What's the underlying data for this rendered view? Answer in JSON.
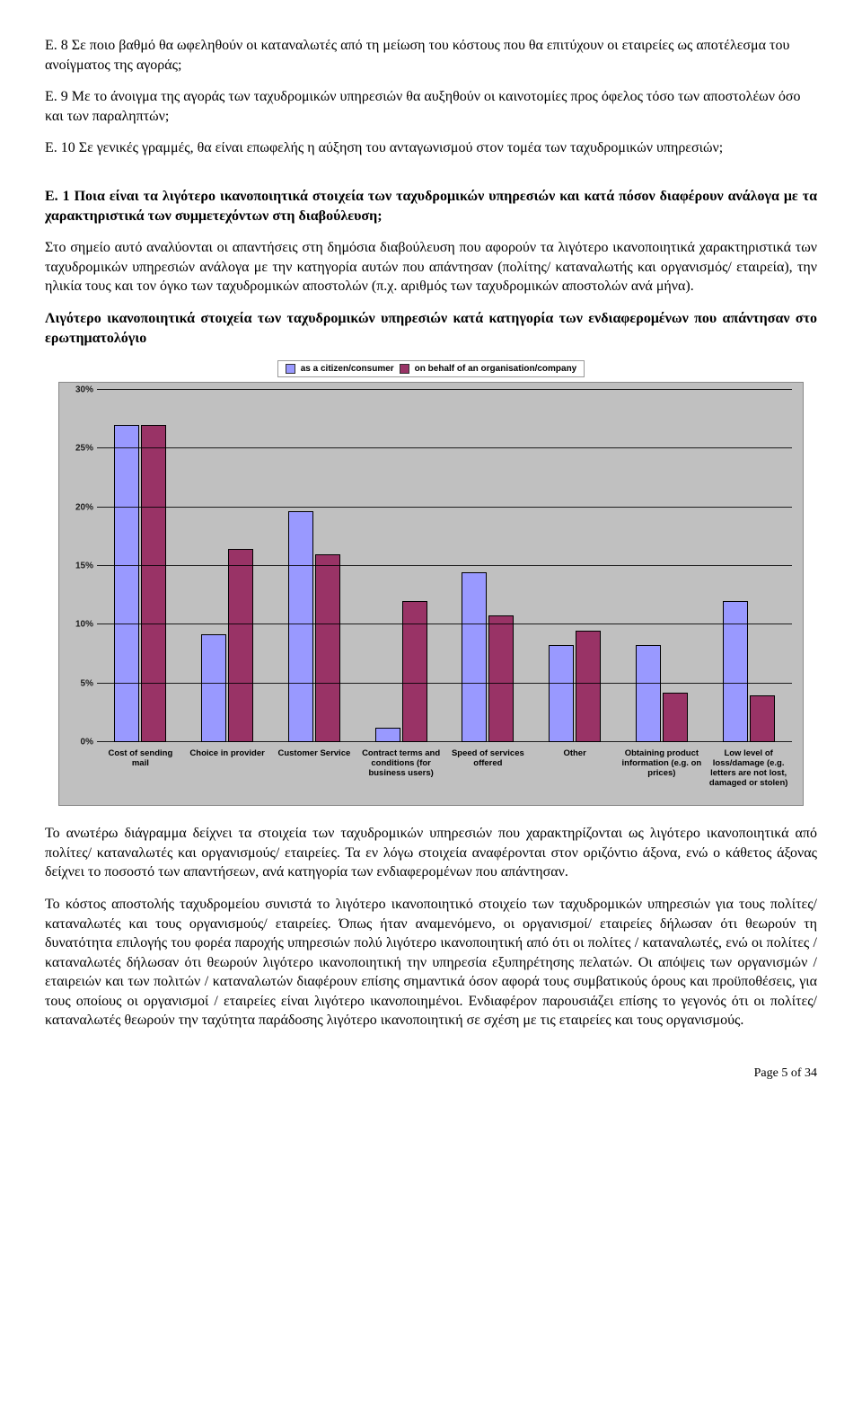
{
  "paragraphs": {
    "e8": "Ε. 8   Σε ποιο βαθμό θα ωφεληθούν οι καταναλωτές από τη μείωση του κόστους που θα επιτύχουν οι εταιρείες ως αποτέλεσμα του ανοίγματος της αγοράς;",
    "e9": "Ε. 9   Με το άνοιγμα της αγοράς των ταχυδρομικών υπηρεσιών θα αυξηθούν οι καινοτομίες προς όφελος τόσο των αποστολέων όσο και των παραληπτών;",
    "e10": "Ε. 10   Σε γενικές γραμμές, θα είναι επωφελής η αύξηση του ανταγωνισμού στον τομέα των ταχυδρομικών υπηρεσιών;",
    "q1": "Ε. 1 Ποια είναι τα λιγότερο ικανοποιητικά στοιχεία των ταχυδρομικών υπηρεσιών και κατά πόσον διαφέρουν ανάλογα με τα χαρακτηριστικά των συμμετεχόντων στη διαβούλευση;",
    "p1": "Στο σημείο αυτό αναλύονται οι απαντήσεις στη δημόσια διαβούλευση που αφορούν τα λιγότερο ικανοποιητικά χαρακτηριστικά των ταχυδρομικών υπηρεσιών ανάλογα με την κατηγορία αυτών που απάντησαν (πολίτης/ καταναλωτής και οργανισμός/ εταιρεία), την ηλικία τους και τον όγκο των ταχυδρομικών αποστολών (π.χ. αριθμός των ταχυδρομικών αποστολών ανά μήνα).",
    "h1": "Λιγότερο ικανοποιητικά στοιχεία των ταχυδρομικών υπηρεσιών κατά κατηγορία των ενδιαφερομένων που απάντησαν στο ερωτηματολόγιο",
    "p2": "Το ανωτέρω διάγραμμα δείχνει τα στοιχεία των ταχυδρομικών υπηρεσιών που χαρακτηρίζονται ως λιγότερο ικανοποιητικά από πολίτες/ καταναλωτές και οργανισμούς/ εταιρείες. Τα εν λόγω στοιχεία αναφέρονται στον οριζόντιο άξονα, ενώ ο κάθετος άξονας δείχνει το ποσοστό των απαντήσεων, ανά κατηγορία των ενδιαφερομένων που απάντησαν.",
    "p3": "Το κόστος αποστολής ταχυδρομείου συνιστά το λιγότερο ικανοποιητικό στοιχείο των ταχυδρομικών υπηρεσιών για τους πολίτες/ καταναλωτές και τους οργανισμούς/ εταιρείες. Όπως ήταν αναμενόμενο, οι οργανισμοί/ εταιρείες δήλωσαν ότι θεωρούν τη δυνατότητα επιλογής του φορέα παροχής υπηρεσιών πολύ λιγότερο ικανοποιητική από ότι οι πολίτες / καταναλωτές, ενώ οι πολίτες /καταναλωτές δήλωσαν ότι θεωρούν λιγότερο ικανοποιητική την υπηρεσία εξυπηρέτησης πελατών. Οι απόψεις των οργανισμών / εταιρειών και των πολιτών / καταναλωτών διαφέρουν επίσης σημαντικά όσον αφορά τους συμβατικούς όρους και προϋποθέσεις, για τους οποίους οι οργανισμοί / εταιρείες είναι λιγότερο ικανοποιημένοι. Ενδιαφέρον παρουσιάζει επίσης το γεγονός ότι οι πολίτες/ καταναλωτές θεωρούν την ταχύτητα παράδοσης λιγότερο ικανοποιητική σε σχέση με τις εταιρείες και τους οργανισμούς."
  },
  "chart": {
    "type": "bar",
    "legend": [
      {
        "label": "as a citizen/consumer",
        "color": "#9999ff"
      },
      {
        "label": "on behalf of an organisation/company",
        "color": "#993366"
      }
    ],
    "background_color": "#c0c0c0",
    "grid_color": "#000000",
    "ymax": 30,
    "ytick_step": 5,
    "ytick_suffix": "%",
    "categories": [
      "Cost of sending mail",
      "Choice in provider",
      "Customer Service",
      "Contract terms and conditions (for business users)",
      "Speed of services offered",
      "Other",
      "Obtaining product information (e.g. on prices)",
      "Low level of loss/damage (e.g. letters are not lost, damaged or stolen)"
    ],
    "series": [
      {
        "color": "#9999ff",
        "border": "#000000",
        "values": [
          27,
          9.2,
          19.7,
          1.2,
          14.5,
          8.3,
          8.3,
          12
        ]
      },
      {
        "color": "#993366",
        "border": "#000000",
        "values": [
          27,
          16.5,
          16,
          12,
          10.8,
          9.5,
          4.2,
          4
        ]
      }
    ]
  },
  "footer": "Page 5 of 34"
}
